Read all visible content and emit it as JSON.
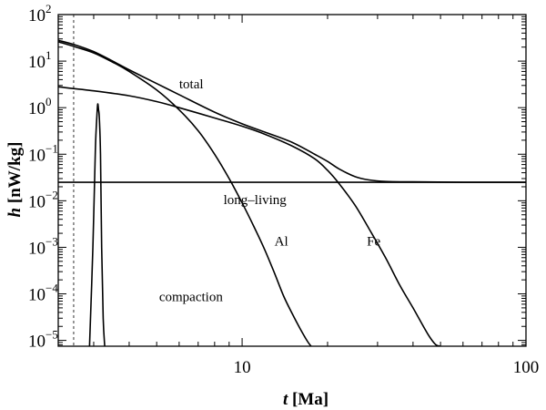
{
  "chart_data": {
    "type": "line",
    "xscale": "log",
    "yscale": "log",
    "xlim": [
      2.25,
      100
    ],
    "ylim": [
      7.5e-06,
      100
    ],
    "xlabel": {
      "var": "t",
      "unit": "[Ma]"
    },
    "ylabel": {
      "var": "h",
      "unit": "[nW/kg]"
    },
    "x_ticks": [
      {
        "value": 10,
        "label": "10"
      },
      {
        "value": 100,
        "label": "100"
      }
    ],
    "y_ticks": [
      {
        "value": 100,
        "base": "10",
        "exp": "2"
      },
      {
        "value": 10,
        "base": "10",
        "exp": "1"
      },
      {
        "value": 1,
        "base": "10",
        "exp": "0"
      },
      {
        "value": 0.1,
        "base": "10",
        "exp": "−1"
      },
      {
        "value": 0.01,
        "base": "10",
        "exp": "−2"
      },
      {
        "value": 0.001,
        "base": "10",
        "exp": "−3"
      },
      {
        "value": 0.0001,
        "base": "10",
        "exp": "−4"
      },
      {
        "value": 1e-05,
        "base": "10",
        "exp": "−5"
      }
    ],
    "reference_line": {
      "x": 2.55,
      "style": "dashed"
    },
    "series": [
      {
        "name": "total",
        "x": [
          2.25,
          2.6,
          3.0,
          3.5,
          4.0,
          5.0,
          6.0,
          8.0,
          10.0,
          12.0,
          15.0,
          18.0,
          20.0,
          22.0,
          25.0,
          28.0,
          32.0,
          40.0,
          60.0,
          100.0
        ],
        "y": [
          28,
          22,
          16,
          10,
          6.5,
          3.3,
          1.9,
          0.8,
          0.45,
          0.3,
          0.18,
          0.1,
          0.07,
          0.048,
          0.033,
          0.028,
          0.026,
          0.0255,
          0.025,
          0.025
        ]
      },
      {
        "name": "Al",
        "x": [
          2.25,
          2.6,
          3.0,
          3.5,
          4.0,
          5.0,
          6.0,
          7.0,
          8.0,
          9.0,
          10.0,
          11.0,
          12.0,
          13.0,
          14.0,
          15.0,
          16.0,
          17.0,
          17.5
        ],
        "y": [
          26,
          20,
          15,
          9.5,
          6.0,
          2.4,
          0.9,
          0.32,
          0.1,
          0.03,
          0.009,
          0.0028,
          0.0009,
          0.00028,
          9e-05,
          3.8e-05,
          1.8e-05,
          9.5e-06,
          7.5e-06
        ]
      },
      {
        "name": "Fe",
        "x": [
          2.25,
          3.0,
          4.0,
          5.0,
          6.0,
          8.0,
          10.0,
          12.0,
          15.0,
          18.0,
          20.0,
          22.0,
          25.0,
          28.0,
          32.0,
          36.0,
          40.0,
          45.0,
          48.0,
          50.0
        ],
        "y": [
          2.8,
          2.3,
          1.8,
          1.35,
          1.0,
          0.6,
          0.4,
          0.27,
          0.15,
          0.08,
          0.045,
          0.023,
          0.008,
          0.0025,
          0.0006,
          0.00015,
          5e-05,
          1.4e-05,
          8.2e-06,
          7.5e-06
        ]
      },
      {
        "name": "long–living",
        "x": [
          2.25,
          100.0
        ],
        "y": [
          0.025,
          0.025
        ]
      },
      {
        "name": "compaction",
        "x": [
          2.9,
          2.98,
          3.04,
          3.08,
          3.1,
          3.12,
          3.14,
          3.17,
          3.2,
          3.24,
          3.28
        ],
        "y": [
          7.5e-06,
          0.001,
          0.12,
          0.7,
          1.2,
          0.9,
          0.6,
          0.1,
          0.001,
          3e-05,
          7.5e-06
        ]
      }
    ],
    "annotations": [
      {
        "text": "total",
        "x": 6.0,
        "y": 2.6
      },
      {
        "text": "long–living",
        "x": 8.6,
        "y": 0.0085
      },
      {
        "text": "Al",
        "x": 13.0,
        "y": 0.0011
      },
      {
        "text": "Fe",
        "x": 27.5,
        "y": 0.0011
      },
      {
        "text": "compaction",
        "x": 5.1,
        "y": 7e-05
      }
    ]
  }
}
